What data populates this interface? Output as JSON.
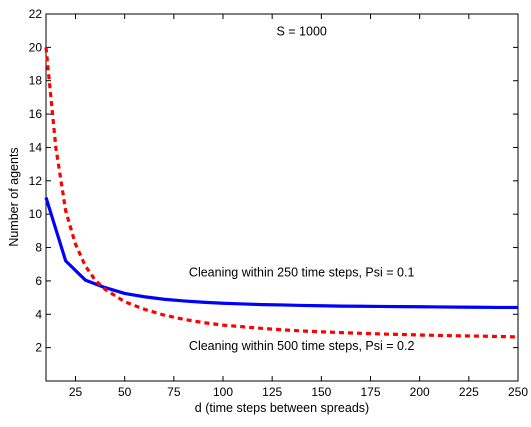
{
  "chart_data": {
    "type": "line",
    "title": "",
    "xlabel": "d (time steps between spreads)",
    "ylabel": "Number of agents",
    "xlim": [
      10,
      250
    ],
    "ylim": [
      0,
      22
    ],
    "xticks": [
      25,
      50,
      75,
      100,
      125,
      150,
      175,
      200,
      225,
      250
    ],
    "yticks": [
      2,
      4,
      6,
      8,
      10,
      12,
      14,
      16,
      18,
      20,
      22
    ],
    "grid": false,
    "legend": "none",
    "annotations": [
      {
        "id": "s-label",
        "text": "S = 1000",
        "x": 140,
        "y": 20.7
      },
      {
        "id": "blue-label",
        "text": "Cleaning within 250 time steps, Psi = 0.1",
        "x": 140,
        "y": 6.25
      },
      {
        "id": "red-label",
        "text": "Cleaning within 500 time steps, Psi = 0.2",
        "x": 140,
        "y": 1.85
      }
    ],
    "series": [
      {
        "color": "#0000ff",
        "line_style": "solid",
        "x": [
          10,
          20,
          30,
          40,
          50,
          60,
          70,
          80,
          90,
          100,
          110,
          120,
          130,
          140,
          150,
          160,
          170,
          180,
          190,
          200,
          210,
          220,
          230,
          240,
          250
        ],
        "y": [
          11.0,
          7.2,
          6.05,
          5.6,
          5.25,
          5.05,
          4.9,
          4.8,
          4.72,
          4.66,
          4.62,
          4.58,
          4.56,
          4.53,
          4.51,
          4.49,
          4.48,
          4.47,
          4.46,
          4.45,
          4.44,
          4.43,
          4.42,
          4.41,
          4.41
        ]
      },
      {
        "color": "#ff0000",
        "line_style": "dashed",
        "x": [
          10,
          15,
          20,
          25,
          30,
          35,
          40,
          50,
          60,
          70,
          80,
          90,
          100,
          110,
          120,
          130,
          140,
          150,
          160,
          170,
          180,
          190,
          200,
          210,
          220,
          230,
          240,
          250
        ],
        "y": [
          20.0,
          14.0,
          10.2,
          8.2,
          6.9,
          6.05,
          5.5,
          4.75,
          4.3,
          3.95,
          3.7,
          3.5,
          3.35,
          3.25,
          3.15,
          3.07,
          3.0,
          2.95,
          2.9,
          2.86,
          2.82,
          2.79,
          2.76,
          2.73,
          2.71,
          2.69,
          2.67,
          2.64
        ]
      }
    ]
  }
}
